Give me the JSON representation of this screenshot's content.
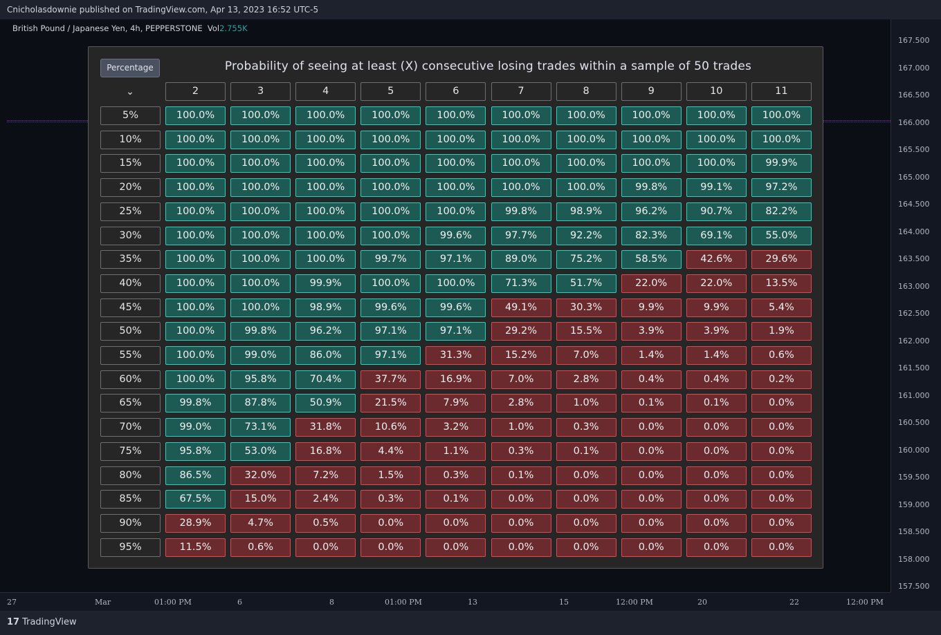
{
  "topbar": {
    "text": "Cnicholasdownie published on TradingView.com, Apr 13, 2023 16:52 UTC-5"
  },
  "symbol": {
    "name": "British Pound / Japanese Yen, 4h, PEPPERSTONE",
    "vol_label": "Vol",
    "vol_value": "2.755K"
  },
  "price_axis": [
    "167.500",
    "167.000",
    "166.500",
    "166.000",
    "165.500",
    "165.000",
    "164.500",
    "164.000",
    "163.500",
    "163.000",
    "162.500",
    "162.000",
    "161.500",
    "161.000",
    "160.500",
    "160.000",
    "159.500",
    "159.000",
    "158.500",
    "158.000",
    "157.500"
  ],
  "time_axis": [
    "27",
    "Mar",
    "01:00 PM",
    "6",
    "8",
    "01:00 PM",
    "13",
    "15",
    "12:00 PM",
    "20",
    "22",
    "12:00 PM"
  ],
  "footer": {
    "logo_mark": "17",
    "logo_text": "TradingView"
  },
  "panel": {
    "button_label": "Percentage",
    "title": "Probability of seeing at least (X) consecutive losing trades within a sample of 50 trades",
    "chevron": "⌄",
    "columns": [
      "2",
      "3",
      "4",
      "5",
      "6",
      "7",
      "8",
      "9",
      "10",
      "11"
    ],
    "rows": [
      {
        "label": "5%",
        "values": [
          "100.0%",
          "100.0%",
          "100.0%",
          "100.0%",
          "100.0%",
          "100.0%",
          "100.0%",
          "100.0%",
          "100.0%",
          "100.0%"
        ]
      },
      {
        "label": "10%",
        "values": [
          "100.0%",
          "100.0%",
          "100.0%",
          "100.0%",
          "100.0%",
          "100.0%",
          "100.0%",
          "100.0%",
          "100.0%",
          "100.0%"
        ]
      },
      {
        "label": "15%",
        "values": [
          "100.0%",
          "100.0%",
          "100.0%",
          "100.0%",
          "100.0%",
          "100.0%",
          "100.0%",
          "100.0%",
          "100.0%",
          "99.9%"
        ]
      },
      {
        "label": "20%",
        "values": [
          "100.0%",
          "100.0%",
          "100.0%",
          "100.0%",
          "100.0%",
          "100.0%",
          "100.0%",
          "99.8%",
          "99.1%",
          "97.2%"
        ]
      },
      {
        "label": "25%",
        "values": [
          "100.0%",
          "100.0%",
          "100.0%",
          "100.0%",
          "100.0%",
          "99.8%",
          "98.9%",
          "96.2%",
          "90.7%",
          "82.2%"
        ]
      },
      {
        "label": "30%",
        "values": [
          "100.0%",
          "100.0%",
          "100.0%",
          "100.0%",
          "99.6%",
          "97.7%",
          "92.2%",
          "82.3%",
          "69.1%",
          "55.0%"
        ]
      },
      {
        "label": "35%",
        "values": [
          "100.0%",
          "100.0%",
          "100.0%",
          "99.7%",
          "97.1%",
          "89.0%",
          "75.2%",
          "58.5%",
          "42.6%",
          "29.6%"
        ]
      },
      {
        "label": "40%",
        "values": [
          "100.0%",
          "100.0%",
          "99.9%",
          "100.0%",
          "100.0%",
          "71.3%",
          "51.7%",
          "22.0%",
          "22.0%",
          "13.5%"
        ]
      },
      {
        "label": "45%",
        "values": [
          "100.0%",
          "100.0%",
          "98.9%",
          "99.6%",
          "99.6%",
          "49.1%",
          "30.3%",
          "9.9%",
          "9.9%",
          "5.4%"
        ]
      },
      {
        "label": "50%",
        "values": [
          "100.0%",
          "99.8%",
          "96.2%",
          "97.1%",
          "97.1%",
          "29.2%",
          "15.5%",
          "3.9%",
          "3.9%",
          "1.9%"
        ]
      },
      {
        "label": "55%",
        "values": [
          "100.0%",
          "99.0%",
          "86.0%",
          "97.1%",
          "31.3%",
          "15.2%",
          "7.0%",
          "1.4%",
          "1.4%",
          "0.6%"
        ]
      },
      {
        "label": "60%",
        "values": [
          "100.0%",
          "95.8%",
          "70.4%",
          "37.7%",
          "16.9%",
          "7.0%",
          "2.8%",
          "0.4%",
          "0.4%",
          "0.2%"
        ]
      },
      {
        "label": "65%",
        "values": [
          "99.8%",
          "87.8%",
          "50.9%",
          "21.5%",
          "7.9%",
          "2.8%",
          "1.0%",
          "0.1%",
          "0.1%",
          "0.0%"
        ]
      },
      {
        "label": "70%",
        "values": [
          "99.0%",
          "73.1%",
          "31.8%",
          "10.6%",
          "3.2%",
          "1.0%",
          "0.3%",
          "0.0%",
          "0.0%",
          "0.0%"
        ]
      },
      {
        "label": "75%",
        "values": [
          "95.8%",
          "53.0%",
          "16.8%",
          "4.4%",
          "1.1%",
          "0.3%",
          "0.1%",
          "0.0%",
          "0.0%",
          "0.0%"
        ]
      },
      {
        "label": "80%",
        "values": [
          "86.5%",
          "32.0%",
          "7.2%",
          "1.5%",
          "0.3%",
          "0.1%",
          "0.0%",
          "0.0%",
          "0.0%",
          "0.0%"
        ]
      },
      {
        "label": "85%",
        "values": [
          "67.5%",
          "15.0%",
          "2.4%",
          "0.3%",
          "0.1%",
          "0.0%",
          "0.0%",
          "0.0%",
          "0.0%",
          "0.0%"
        ]
      },
      {
        "label": "90%",
        "values": [
          "28.9%",
          "4.7%",
          "0.5%",
          "0.0%",
          "0.0%",
          "0.0%",
          "0.0%",
          "0.0%",
          "0.0%",
          "0.0%"
        ]
      },
      {
        "label": "95%",
        "values": [
          "11.5%",
          "0.6%",
          "0.0%",
          "0.0%",
          "0.0%",
          "0.0%",
          "0.0%",
          "0.0%",
          "0.0%",
          "0.0%"
        ]
      }
    ],
    "good_threshold": 50,
    "colors": {
      "good_fill": "#1e5a54",
      "good_border": "#2bd1bd",
      "bad_fill": "#6b2a2e",
      "bad_border": "#e0474f"
    }
  }
}
